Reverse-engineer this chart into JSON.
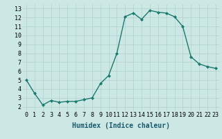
{
  "x": [
    0,
    1,
    2,
    3,
    4,
    5,
    6,
    7,
    8,
    9,
    10,
    11,
    12,
    13,
    14,
    15,
    16,
    17,
    18,
    19,
    20,
    21,
    22,
    23
  ],
  "y": [
    5.0,
    3.5,
    2.2,
    2.7,
    2.5,
    2.6,
    2.6,
    2.8,
    3.0,
    4.6,
    5.5,
    8.0,
    12.1,
    12.5,
    11.8,
    12.8,
    12.6,
    12.5,
    12.1,
    11.0,
    7.6,
    6.8,
    6.5,
    6.3
  ],
  "line_color": "#1a7a6e",
  "marker": "D",
  "marker_size": 2,
  "bg_color": "#cce8e4",
  "grid_color": "#b0d0cc",
  "xlabel": "Humidex (Indice chaleur)",
  "xlim": [
    -0.5,
    23.5
  ],
  "ylim": [
    1.5,
    13.5
  ],
  "xticks": [
    0,
    1,
    2,
    3,
    4,
    5,
    6,
    7,
    8,
    9,
    10,
    11,
    12,
    13,
    14,
    15,
    16,
    17,
    18,
    19,
    20,
    21,
    22,
    23
  ],
  "yticks": [
    2,
    3,
    4,
    5,
    6,
    7,
    8,
    9,
    10,
    11,
    12,
    13
  ],
  "xlabel_fontsize": 7,
  "tick_fontsize": 6,
  "line_width": 1.0
}
